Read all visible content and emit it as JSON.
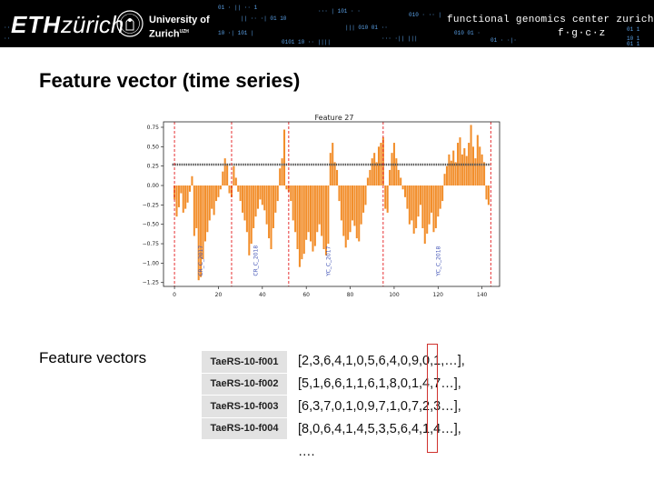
{
  "header": {
    "eth_logo_bold": "ETH",
    "eth_logo_light": "zürich",
    "uzh_line1": "University of",
    "uzh_line2": "Zurich",
    "uzh_superscript": "UZH",
    "fgcz_name": "functional genomics center zurich",
    "fgcz_abbr": "f·g·c·z"
  },
  "slide": {
    "title": "Feature vector (time series)",
    "feature_vectors_label": "Feature vectors",
    "ids": [
      "TaeRS-10-f001",
      "TaeRS-10-f002",
      "TaeRS-10-f003",
      "TaeRS-10-f004"
    ],
    "vectors": [
      "[2,3,6,4,1,0,5,6,4,0,9,0,1,…],",
      "[5,1,6,6,1,1,6,1,8,0,1,4,7…],",
      "[6,3,7,0,1,0,9,7,1,0,7,2,3…],",
      "[8,0,6,4,1,4,5,3,5,6,4,1,4…],"
    ],
    "ellipsis": "….",
    "highlight_color": "#d0312d"
  },
  "chart_data": {
    "type": "bar",
    "title": "Feature 27",
    "xlim": [
      -5,
      148
    ],
    "ylim": [
      -1.3,
      0.82
    ],
    "x_ticks": [
      0,
      20,
      40,
      60,
      80,
      100,
      120,
      140
    ],
    "y_ticks": [
      -1.25,
      -1.0,
      -0.75,
      -0.5,
      -0.25,
      0.0,
      0.25,
      0.5,
      0.75
    ],
    "y_tick_labels": [
      "−1.25",
      "−1.00",
      "−0.75",
      "−0.50",
      "−0.25",
      "0.00",
      "0.25",
      "0.50",
      "0.75"
    ],
    "bar_color": "#f28e2b",
    "reference_line_value": 0.27,
    "reference_color": "#555555",
    "separator_color": "#e41a1c",
    "label_color": "#3f51b5",
    "separators": [
      0,
      26,
      52,
      95,
      144
    ],
    "segment_labels": [
      {
        "text": "CR_C_2017",
        "x": 12
      },
      {
        "text": "CR_C_2018",
        "x": 37
      },
      {
        "text": "YC_C_2017",
        "x": 70
      },
      {
        "text": "YC_C_2018",
        "x": 120
      }
    ],
    "values": [
      -0.18,
      -0.4,
      -0.28,
      -0.1,
      -0.35,
      -0.3,
      -0.22,
      -0.08,
      0.12,
      -0.65,
      -0.55,
      -1.22,
      -1.18,
      -0.95,
      -0.72,
      -0.6,
      -0.45,
      -0.3,
      -0.38,
      -0.2,
      -0.15,
      -0.05,
      0.18,
      0.35,
      0.28,
      -0.1,
      -0.15,
      0.25,
      0.1,
      -0.08,
      -0.2,
      -0.35,
      -0.45,
      -0.6,
      -0.9,
      -0.75,
      -0.55,
      -0.4,
      -0.3,
      -0.18,
      -0.25,
      -0.32,
      -0.5,
      -0.68,
      -0.82,
      -0.55,
      -0.35,
      -0.2,
      0.22,
      0.35,
      0.72,
      -0.05,
      -0.08,
      -0.2,
      -0.45,
      -0.6,
      -0.82,
      -1.05,
      -0.95,
      -0.88,
      -0.7,
      -0.6,
      -0.72,
      -0.85,
      -0.78,
      -0.6,
      -0.5,
      -0.65,
      -0.82,
      -0.9,
      -0.75,
      0.42,
      0.55,
      0.3,
      0.2,
      -0.2,
      -0.45,
      -0.65,
      -0.8,
      -0.7,
      -0.6,
      -0.45,
      -0.52,
      -0.68,
      -0.72,
      -0.5,
      -0.35,
      -0.25,
      0.1,
      0.2,
      0.35,
      0.42,
      0.3,
      0.5,
      0.55,
      0.62,
      -0.3,
      -0.35,
      0.2,
      0.42,
      0.55,
      0.35,
      0.2,
      0.1,
      -0.05,
      -0.15,
      -0.3,
      -0.5,
      -0.45,
      -0.62,
      -0.55,
      -0.4,
      -0.25,
      -0.55,
      -0.75,
      -0.62,
      -0.5,
      -0.35,
      -0.6,
      -0.55,
      -0.4,
      -0.3,
      -0.2,
      0.15,
      0.25,
      0.4,
      0.32,
      0.45,
      0.3,
      0.55,
      0.62,
      0.4,
      0.48,
      0.38,
      0.55,
      0.78,
      0.5,
      0.35,
      0.65,
      0.5,
      0.4,
      0.3,
      -0.18,
      -0.25
    ]
  }
}
